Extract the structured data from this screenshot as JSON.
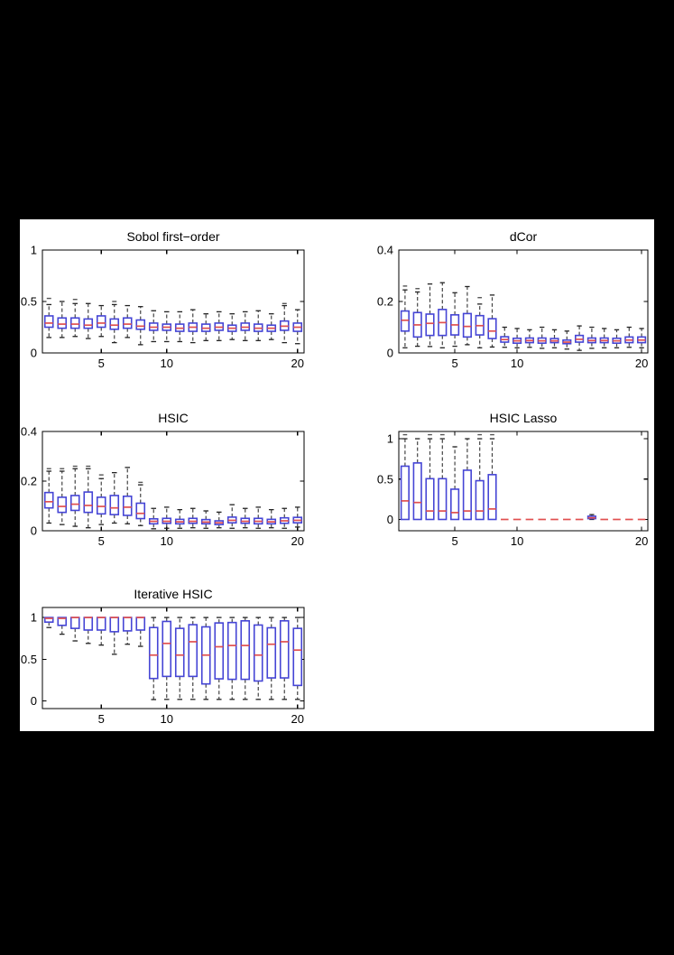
{
  "figure": {
    "background": "#000000",
    "panel_background": "#ffffff"
  },
  "style": {
    "box_color": "#4545d5",
    "median_color": "#e05050",
    "whisker_color": "#444444",
    "cap_color": "#222222",
    "outlier_color": "#555555",
    "axis_color": "#000000",
    "tick_label_color": "#000000"
  },
  "chart_data": [
    {
      "type": "boxplot",
      "title": "Sobol first−order",
      "xticks": [
        5,
        10,
        20
      ],
      "yticks": [
        0,
        0.5,
        1
      ],
      "xlim": [
        0.5,
        20.5
      ],
      "ylim": [
        0,
        1
      ],
      "grid": false,
      "boxes": [
        {
          "x": 1,
          "q1": 0.25,
          "med": 0.29,
          "q3": 0.36,
          "wlo": 0.15,
          "whi": 0.47,
          "out": [
            0.53
          ]
        },
        {
          "x": 2,
          "q1": 0.24,
          "med": 0.28,
          "q3": 0.34,
          "wlo": 0.15,
          "whi": 0.5,
          "out": []
        },
        {
          "x": 3,
          "q1": 0.24,
          "med": 0.28,
          "q3": 0.34,
          "wlo": 0.16,
          "whi": 0.48,
          "out": [
            0.52
          ]
        },
        {
          "x": 4,
          "q1": 0.24,
          "med": 0.27,
          "q3": 0.33,
          "wlo": 0.14,
          "whi": 0.48,
          "out": []
        },
        {
          "x": 5,
          "q1": 0.25,
          "med": 0.29,
          "q3": 0.36,
          "wlo": 0.16,
          "whi": 0.46,
          "out": []
        },
        {
          "x": 6,
          "q1": 0.23,
          "med": 0.27,
          "q3": 0.33,
          "wlo": 0.1,
          "whi": 0.47,
          "out": [
            0.5
          ]
        },
        {
          "x": 7,
          "q1": 0.24,
          "med": 0.28,
          "q3": 0.34,
          "wlo": 0.15,
          "whi": 0.46,
          "out": []
        },
        {
          "x": 8,
          "q1": 0.23,
          "med": 0.26,
          "q3": 0.32,
          "wlo": 0.08,
          "whi": 0.45,
          "out": []
        },
        {
          "x": 9,
          "q1": 0.22,
          "med": 0.25,
          "q3": 0.29,
          "wlo": 0.11,
          "whi": 0.41,
          "out": []
        },
        {
          "x": 10,
          "q1": 0.22,
          "med": 0.25,
          "q3": 0.28,
          "wlo": 0.11,
          "whi": 0.4,
          "out": []
        },
        {
          "x": 11,
          "q1": 0.21,
          "med": 0.24,
          "q3": 0.28,
          "wlo": 0.11,
          "whi": 0.4,
          "out": []
        },
        {
          "x": 12,
          "q1": 0.21,
          "med": 0.25,
          "q3": 0.29,
          "wlo": 0.1,
          "whi": 0.42,
          "out": []
        },
        {
          "x": 13,
          "q1": 0.21,
          "med": 0.24,
          "q3": 0.28,
          "wlo": 0.12,
          "whi": 0.38,
          "out": []
        },
        {
          "x": 14,
          "q1": 0.22,
          "med": 0.25,
          "q3": 0.29,
          "wlo": 0.12,
          "whi": 0.4,
          "out": []
        },
        {
          "x": 15,
          "q1": 0.21,
          "med": 0.24,
          "q3": 0.27,
          "wlo": 0.13,
          "whi": 0.38,
          "out": []
        },
        {
          "x": 16,
          "q1": 0.22,
          "med": 0.25,
          "q3": 0.29,
          "wlo": 0.12,
          "whi": 0.4,
          "out": []
        },
        {
          "x": 17,
          "q1": 0.21,
          "med": 0.24,
          "q3": 0.28,
          "wlo": 0.12,
          "whi": 0.41,
          "out": []
        },
        {
          "x": 18,
          "q1": 0.21,
          "med": 0.24,
          "q3": 0.27,
          "wlo": 0.13,
          "whi": 0.38,
          "out": []
        },
        {
          "x": 19,
          "q1": 0.22,
          "med": 0.26,
          "q3": 0.31,
          "wlo": 0.1,
          "whi": 0.46,
          "out": [
            0.48
          ]
        },
        {
          "x": 20,
          "q1": 0.21,
          "med": 0.25,
          "q3": 0.29,
          "wlo": 0.09,
          "whi": 0.42,
          "out": []
        }
      ]
    },
    {
      "type": "boxplot",
      "title": "dCor",
      "xticks": [
        5,
        10,
        20
      ],
      "yticks": [
        0,
        0.2,
        0.4
      ],
      "xlim": [
        0.5,
        20.5
      ],
      "ylim": [
        0,
        0.4
      ],
      "grid": false,
      "boxes": [
        {
          "x": 1,
          "q1": 0.085,
          "med": 0.127,
          "q3": 0.163,
          "wlo": 0.02,
          "whi": 0.245,
          "out": [
            0.26
          ]
        },
        {
          "x": 2,
          "q1": 0.062,
          "med": 0.109,
          "q3": 0.157,
          "wlo": 0.026,
          "whi": 0.237,
          "out": [
            0.25
          ]
        },
        {
          "x": 3,
          "q1": 0.068,
          "med": 0.115,
          "q3": 0.151,
          "wlo": 0.025,
          "whi": 0.268,
          "out": []
        },
        {
          "x": 4,
          "q1": 0.068,
          "med": 0.118,
          "q3": 0.169,
          "wlo": 0.02,
          "whi": 0.273,
          "out": []
        },
        {
          "x": 5,
          "q1": 0.07,
          "med": 0.109,
          "q3": 0.148,
          "wlo": 0.026,
          "whi": 0.234,
          "out": []
        },
        {
          "x": 6,
          "q1": 0.062,
          "med": 0.103,
          "q3": 0.153,
          "wlo": 0.032,
          "whi": 0.258,
          "out": []
        },
        {
          "x": 7,
          "q1": 0.07,
          "med": 0.106,
          "q3": 0.145,
          "wlo": 0.02,
          "whi": 0.19,
          "out": [
            0.215
          ]
        },
        {
          "x": 8,
          "q1": 0.056,
          "med": 0.085,
          "q3": 0.133,
          "wlo": 0.023,
          "whi": 0.225,
          "out": []
        },
        {
          "x": 9,
          "q1": 0.042,
          "med": 0.052,
          "q3": 0.063,
          "wlo": 0.022,
          "whi": 0.1,
          "out": []
        },
        {
          "x": 10,
          "q1": 0.038,
          "med": 0.047,
          "q3": 0.057,
          "wlo": 0.02,
          "whi": 0.095,
          "out": []
        },
        {
          "x": 11,
          "q1": 0.04,
          "med": 0.048,
          "q3": 0.058,
          "wlo": 0.022,
          "whi": 0.09,
          "out": []
        },
        {
          "x": 12,
          "q1": 0.038,
          "med": 0.047,
          "q3": 0.058,
          "wlo": 0.018,
          "whi": 0.1,
          "out": []
        },
        {
          "x": 13,
          "q1": 0.04,
          "med": 0.047,
          "q3": 0.056,
          "wlo": 0.02,
          "whi": 0.09,
          "out": []
        },
        {
          "x": 14,
          "q1": 0.036,
          "med": 0.042,
          "q3": 0.05,
          "wlo": 0.015,
          "whi": 0.085,
          "out": []
        },
        {
          "x": 15,
          "q1": 0.042,
          "med": 0.053,
          "q3": 0.068,
          "wlo": 0.01,
          "whi": 0.105,
          "out": []
        },
        {
          "x": 16,
          "q1": 0.04,
          "med": 0.048,
          "q3": 0.058,
          "wlo": 0.018,
          "whi": 0.1,
          "out": []
        },
        {
          "x": 17,
          "q1": 0.04,
          "med": 0.048,
          "q3": 0.058,
          "wlo": 0.02,
          "whi": 0.095,
          "out": []
        },
        {
          "x": 18,
          "q1": 0.038,
          "med": 0.047,
          "q3": 0.057,
          "wlo": 0.02,
          "whi": 0.09,
          "out": []
        },
        {
          "x": 19,
          "q1": 0.04,
          "med": 0.05,
          "q3": 0.062,
          "wlo": 0.022,
          "whi": 0.1,
          "out": []
        },
        {
          "x": 20,
          "q1": 0.04,
          "med": 0.05,
          "q3": 0.062,
          "wlo": 0.02,
          "whi": 0.095,
          "out": []
        }
      ]
    },
    {
      "type": "boxplot",
      "title": "HSIC",
      "xticks": [
        5,
        10,
        20
      ],
      "yticks": [
        0,
        0.2,
        0.4
      ],
      "xlim": [
        0.5,
        20.5
      ],
      "ylim": [
        0,
        0.4
      ],
      "grid": false,
      "boxes": [
        {
          "x": 1,
          "q1": 0.092,
          "med": 0.117,
          "q3": 0.154,
          "wlo": 0.031,
          "whi": 0.24,
          "out": [
            0.25
          ]
        },
        {
          "x": 2,
          "q1": 0.074,
          "med": 0.098,
          "q3": 0.135,
          "wlo": 0.025,
          "whi": 0.24,
          "out": [
            0.25
          ]
        },
        {
          "x": 3,
          "q1": 0.082,
          "med": 0.107,
          "q3": 0.142,
          "wlo": 0.018,
          "whi": 0.25,
          "out": [
            0.26
          ]
        },
        {
          "x": 4,
          "q1": 0.074,
          "med": 0.102,
          "q3": 0.156,
          "wlo": 0.012,
          "whi": 0.25,
          "out": [
            0.26
          ]
        },
        {
          "x": 5,
          "q1": 0.068,
          "med": 0.098,
          "q3": 0.135,
          "wlo": 0.025,
          "whi": 0.21,
          "out": [
            0.225
          ]
        },
        {
          "x": 6,
          "q1": 0.065,
          "med": 0.092,
          "q3": 0.142,
          "wlo": 0.031,
          "whi": 0.234,
          "out": []
        },
        {
          "x": 7,
          "q1": 0.062,
          "med": 0.095,
          "q3": 0.139,
          "wlo": 0.028,
          "whi": 0.255,
          "out": []
        },
        {
          "x": 8,
          "q1": 0.049,
          "med": 0.07,
          "q3": 0.111,
          "wlo": 0.021,
          "whi": 0.185,
          "out": [
            0.195
          ]
        },
        {
          "x": 9,
          "q1": 0.028,
          "med": 0.038,
          "q3": 0.048,
          "wlo": 0.008,
          "whi": 0.09,
          "out": []
        },
        {
          "x": 10,
          "q1": 0.03,
          "med": 0.038,
          "q3": 0.05,
          "wlo": 0.01,
          "whi": 0.095,
          "out": []
        },
        {
          "x": 11,
          "q1": 0.028,
          "med": 0.036,
          "q3": 0.046,
          "wlo": 0.01,
          "whi": 0.085,
          "out": []
        },
        {
          "x": 12,
          "q1": 0.03,
          "med": 0.038,
          "q3": 0.05,
          "wlo": 0.012,
          "whi": 0.09,
          "out": []
        },
        {
          "x": 13,
          "q1": 0.028,
          "med": 0.035,
          "q3": 0.045,
          "wlo": 0.01,
          "whi": 0.08,
          "out": []
        },
        {
          "x": 14,
          "q1": 0.025,
          "med": 0.032,
          "q3": 0.04,
          "wlo": 0.012,
          "whi": 0.075,
          "out": []
        },
        {
          "x": 15,
          "q1": 0.032,
          "med": 0.042,
          "q3": 0.055,
          "wlo": 0.01,
          "whi": 0.105,
          "out": []
        },
        {
          "x": 16,
          "q1": 0.03,
          "med": 0.038,
          "q3": 0.05,
          "wlo": 0.012,
          "whi": 0.09,
          "out": []
        },
        {
          "x": 17,
          "q1": 0.028,
          "med": 0.038,
          "q3": 0.05,
          "wlo": 0.01,
          "whi": 0.095,
          "out": []
        },
        {
          "x": 18,
          "q1": 0.028,
          "med": 0.036,
          "q3": 0.046,
          "wlo": 0.012,
          "whi": 0.085,
          "out": []
        },
        {
          "x": 19,
          "q1": 0.03,
          "med": 0.04,
          "q3": 0.052,
          "wlo": 0.01,
          "whi": 0.09,
          "out": []
        },
        {
          "x": 20,
          "q1": 0.032,
          "med": 0.042,
          "q3": 0.054,
          "wlo": 0.015,
          "whi": 0.095,
          "out": []
        }
      ]
    },
    {
      "type": "boxplot",
      "title": "HSIC Lasso",
      "xticks": [
        5,
        10,
        20
      ],
      "yticks": [
        0,
        0.5,
        1
      ],
      "xlim": [
        0.5,
        20.5
      ],
      "ylim": [
        -0.14,
        1.09
      ],
      "grid": false,
      "boxes": [
        {
          "x": 1,
          "q1": 0,
          "med": 0.23,
          "q3": 0.66,
          "wlo": 0,
          "whi": 1.0,
          "out": [
            1.05
          ]
        },
        {
          "x": 2,
          "q1": 0,
          "med": 0.21,
          "q3": 0.7,
          "wlo": 0,
          "whi": 1.0,
          "out": []
        },
        {
          "x": 3,
          "q1": 0,
          "med": 0.105,
          "q3": 0.505,
          "wlo": 0,
          "whi": 1.0,
          "out": [
            1.05
          ]
        },
        {
          "x": 4,
          "q1": 0,
          "med": 0.105,
          "q3": 0.505,
          "wlo": 0,
          "whi": 1.0,
          "out": [
            1.05
          ]
        },
        {
          "x": 5,
          "q1": 0,
          "med": 0.085,
          "q3": 0.375,
          "wlo": 0,
          "whi": 0.9,
          "out": []
        },
        {
          "x": 6,
          "q1": 0,
          "med": 0.105,
          "q3": 0.61,
          "wlo": 0,
          "whi": 1.0,
          "out": []
        },
        {
          "x": 7,
          "q1": 0,
          "med": 0.105,
          "q3": 0.48,
          "wlo": 0,
          "whi": 1.0,
          "out": [
            1.05
          ]
        },
        {
          "x": 8,
          "q1": 0,
          "med": 0.13,
          "q3": 0.555,
          "wlo": 0,
          "whi": 1.0,
          "out": [
            1.05
          ]
        },
        {
          "x": 9,
          "q1": 0,
          "med": 0,
          "q3": 0,
          "wlo": 0,
          "whi": 0,
          "out": []
        },
        {
          "x": 10,
          "q1": 0,
          "med": 0,
          "q3": 0,
          "wlo": 0,
          "whi": 0,
          "out": []
        },
        {
          "x": 11,
          "q1": 0,
          "med": 0,
          "q3": 0,
          "wlo": 0,
          "whi": 0,
          "out": []
        },
        {
          "x": 12,
          "q1": 0,
          "med": 0,
          "q3": 0,
          "wlo": 0,
          "whi": 0,
          "out": []
        },
        {
          "x": 13,
          "q1": 0,
          "med": 0,
          "q3": 0,
          "wlo": 0,
          "whi": 0,
          "out": []
        },
        {
          "x": 14,
          "q1": 0,
          "med": 0,
          "q3": 0,
          "wlo": 0,
          "whi": 0,
          "out": []
        },
        {
          "x": 15,
          "q1": 0,
          "med": 0,
          "q3": 0,
          "wlo": 0,
          "whi": 0,
          "out": []
        },
        {
          "x": 16,
          "q1": 0.01,
          "med": 0.02,
          "q3": 0.04,
          "wlo": 0,
          "whi": 0.06,
          "out": []
        },
        {
          "x": 17,
          "q1": 0,
          "med": 0,
          "q3": 0,
          "wlo": 0,
          "whi": 0,
          "out": []
        },
        {
          "x": 18,
          "q1": 0,
          "med": 0,
          "q3": 0,
          "wlo": 0,
          "whi": 0,
          "out": []
        },
        {
          "x": 19,
          "q1": 0,
          "med": 0,
          "q3": 0,
          "wlo": 0,
          "whi": 0,
          "out": []
        },
        {
          "x": 20,
          "q1": 0,
          "med": 0,
          "q3": 0,
          "wlo": 0,
          "whi": 0,
          "out": []
        }
      ]
    },
    {
      "type": "boxplot",
      "title": "Iterative HSIC",
      "xticks": [
        5,
        10,
        20
      ],
      "yticks": [
        0,
        0.5,
        1
      ],
      "xlim": [
        0.5,
        20.5
      ],
      "ylim": [
        -0.09,
        1.12
      ],
      "grid": false,
      "boxes": [
        {
          "x": 1,
          "q1": 0.945,
          "med": 0.99,
          "q3": 1.0,
          "wlo": 0.88,
          "whi": 1.0,
          "out": []
        },
        {
          "x": 2,
          "q1": 0.906,
          "med": 0.99,
          "q3": 1.0,
          "wlo": 0.8,
          "whi": 1.0,
          "out": []
        },
        {
          "x": 3,
          "q1": 0.87,
          "med": 1.0,
          "q3": 1.0,
          "wlo": 0.72,
          "whi": 1.0,
          "out": []
        },
        {
          "x": 4,
          "q1": 0.85,
          "med": 1.0,
          "q3": 1.0,
          "wlo": 0.69,
          "whi": 1.0,
          "out": []
        },
        {
          "x": 5,
          "q1": 0.85,
          "med": 1.0,
          "q3": 1.0,
          "wlo": 0.67,
          "whi": 1.0,
          "out": []
        },
        {
          "x": 6,
          "q1": 0.83,
          "med": 1.0,
          "q3": 1.0,
          "wlo": 0.56,
          "whi": 1.0,
          "out": []
        },
        {
          "x": 7,
          "q1": 0.84,
          "med": 1.0,
          "q3": 1.0,
          "wlo": 0.68,
          "whi": 1.0,
          "out": []
        },
        {
          "x": 8,
          "q1": 0.85,
          "med": 1.0,
          "q3": 1.0,
          "wlo": 0.655,
          "whi": 1.0,
          "out": []
        },
        {
          "x": 9,
          "q1": 0.27,
          "med": 0.55,
          "q3": 0.88,
          "wlo": 0.018,
          "whi": 1.0,
          "out": []
        },
        {
          "x": 10,
          "q1": 0.295,
          "med": 0.69,
          "q3": 0.953,
          "wlo": 0.02,
          "whi": 1.0,
          "out": []
        },
        {
          "x": 11,
          "q1": 0.295,
          "med": 0.55,
          "q3": 0.87,
          "wlo": 0.02,
          "whi": 1.0,
          "out": []
        },
        {
          "x": 12,
          "q1": 0.295,
          "med": 0.71,
          "q3": 0.914,
          "wlo": 0.02,
          "whi": 1.0,
          "out": []
        },
        {
          "x": 13,
          "q1": 0.205,
          "med": 0.55,
          "q3": 0.888,
          "wlo": 0.02,
          "whi": 1.0,
          "out": []
        },
        {
          "x": 14,
          "q1": 0.266,
          "med": 0.65,
          "q3": 0.935,
          "wlo": 0.02,
          "whi": 1.0,
          "out": []
        },
        {
          "x": 15,
          "q1": 0.26,
          "med": 0.665,
          "q3": 0.94,
          "wlo": 0.02,
          "whi": 1.0,
          "out": []
        },
        {
          "x": 16,
          "q1": 0.26,
          "med": 0.665,
          "q3": 0.96,
          "wlo": 0.02,
          "whi": 1.0,
          "out": []
        },
        {
          "x": 17,
          "q1": 0.24,
          "med": 0.55,
          "q3": 0.91,
          "wlo": 0.02,
          "whi": 1.0,
          "out": []
        },
        {
          "x": 18,
          "q1": 0.277,
          "med": 0.68,
          "q3": 0.877,
          "wlo": 0.02,
          "whi": 1.0,
          "out": []
        },
        {
          "x": 19,
          "q1": 0.277,
          "med": 0.71,
          "q3": 0.96,
          "wlo": 0.02,
          "whi": 1.0,
          "out": []
        },
        {
          "x": 20,
          "q1": 0.187,
          "med": 0.61,
          "q3": 0.87,
          "wlo": 0.02,
          "whi": 1.0,
          "out": []
        }
      ]
    }
  ]
}
